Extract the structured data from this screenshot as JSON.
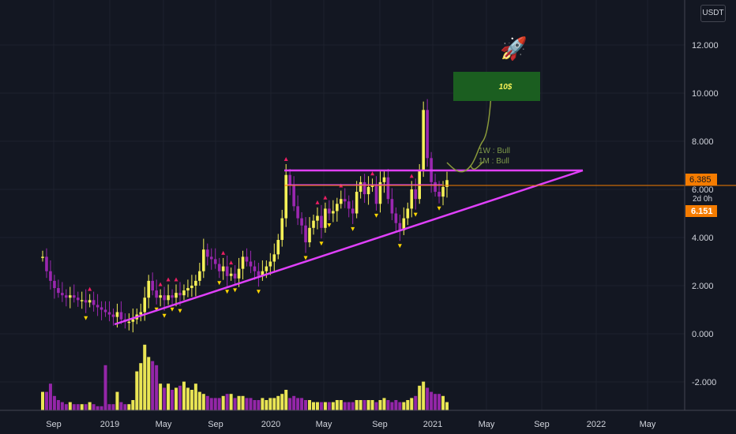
{
  "currency_button": "USDT",
  "rocket_icon": "rocket-icon",
  "colors": {
    "background": "#131722",
    "grid": "#1e222d",
    "candle_up": "#f5f057",
    "candle_down": "#9b27b0",
    "triangle": "#e040fb",
    "price_line": "#f57c00",
    "target_box": "#1b5e20",
    "projection": "#8a9a3a",
    "arrow_up": "#e91e63",
    "arrow_down": "#ffd600"
  },
  "chart_data": {
    "type": "candlestick",
    "y_ticks": [
      "12.000",
      "10.000",
      "8.000",
      "6.000",
      "4.000",
      "2.000",
      "0.000",
      "-2.000"
    ],
    "ylim": [
      -3.1,
      13.5
    ],
    "x_ticks": [
      "Sep",
      "2019",
      "May",
      "Sep",
      "2020",
      "May",
      "Sep",
      "2021",
      "May",
      "Sep",
      "2022",
      "May"
    ],
    "price_labels": {
      "current": "6.385",
      "countdown": "2d 0h",
      "low": "6.151"
    },
    "annotations": {
      "target": "10$",
      "weekly": "1W : Bull",
      "monthly": "1M : Bull"
    },
    "series": [
      {
        "name": "price",
        "close": [
          3.2,
          2.6,
          2.2,
          1.9,
          1.7,
          1.6,
          1.5,
          1.6,
          1.5,
          1.4,
          1.4,
          1.3,
          1.4,
          1.2,
          1.1,
          1.0,
          0.9,
          0.8,
          0.7,
          0.9,
          0.6,
          0.5,
          0.5,
          0.6,
          0.8,
          0.9,
          1.5,
          2.2,
          1.8,
          1.5,
          1.6,
          1.4,
          1.6,
          1.5,
          1.7,
          1.6,
          1.8,
          1.9,
          2.0,
          2.2,
          2.6,
          3.5,
          3.2,
          3.1,
          2.9,
          2.6,
          2.8,
          2.4,
          2.5,
          2.3,
          2.7,
          3.2,
          3.0,
          2.8,
          2.6,
          2.4,
          2.6,
          2.8,
          3.0,
          3.3,
          3.9,
          4.8,
          6.6,
          6.2,
          5.3,
          4.8,
          4.5,
          3.8,
          4.4,
          4.7,
          4.9,
          4.4,
          5.2,
          5.0,
          5.1,
          5.4,
          5.6,
          5.5,
          5.2,
          5.0,
          5.9,
          6.3,
          5.8,
          6.1,
          6.2,
          5.4,
          6.3,
          6.5,
          5.6,
          5.0,
          4.6,
          4.3,
          4.8,
          5.2,
          6.0,
          5.6,
          6.8,
          9.3,
          7.3,
          6.3,
          5.9,
          5.7,
          6.1,
          6.385
        ]
      },
      {
        "name": "volume",
        "values": [
          0.9,
          0.9,
          1.3,
          0.7,
          0.5,
          0.4,
          0.3,
          0.4,
          0.3,
          0.3,
          0.3,
          0.3,
          0.4,
          0.3,
          0.2,
          0.2,
          2.2,
          0.3,
          0.3,
          0.9,
          0.4,
          0.3,
          0.3,
          0.5,
          1.9,
          2.3,
          3.2,
          2.6,
          2.4,
          2.2,
          1.3,
          1.1,
          1.3,
          1.0,
          1.1,
          1.2,
          1.4,
          1.1,
          1.0,
          1.3,
          0.9,
          0.8,
          0.7,
          0.6,
          0.6,
          0.6,
          0.7,
          0.8,
          0.8,
          0.6,
          0.7,
          0.7,
          0.6,
          0.6,
          0.5,
          0.5,
          0.6,
          0.5,
          0.6,
          0.6,
          0.7,
          0.8,
          1.0,
          0.6,
          0.7,
          0.6,
          0.6,
          0.5,
          0.5,
          0.4,
          0.4,
          0.4,
          0.4,
          0.4,
          0.4,
          0.5,
          0.5,
          0.4,
          0.4,
          0.4,
          0.5,
          0.5,
          0.5,
          0.5,
          0.5,
          0.4,
          0.5,
          0.6,
          0.5,
          0.4,
          0.5,
          0.4,
          0.4,
          0.5,
          0.6,
          0.7,
          1.2,
          1.4,
          1.1,
          0.9,
          0.8,
          0.8,
          0.7,
          0.4
        ]
      }
    ]
  }
}
